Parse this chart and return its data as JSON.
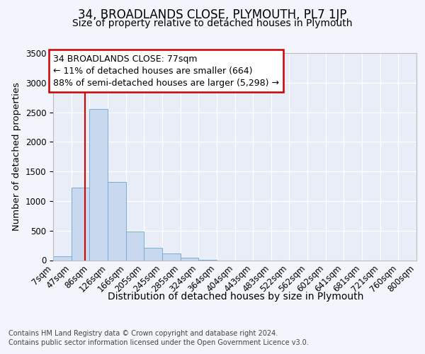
{
  "title": "34, BROADLANDS CLOSE, PLYMOUTH, PL7 1JP",
  "subtitle": "Size of property relative to detached houses in Plymouth",
  "xlabel": "Distribution of detached houses by size in Plymouth",
  "ylabel": "Number of detached properties",
  "bin_edges": [
    7,
    47,
    86,
    126,
    166,
    205,
    245,
    285,
    324,
    364,
    404,
    443,
    483,
    522,
    562,
    602,
    641,
    681,
    721,
    760,
    800
  ],
  "bar_heights": [
    60,
    1230,
    2550,
    1320,
    490,
    210,
    110,
    40,
    5,
    0,
    0,
    0,
    0,
    0,
    0,
    0,
    0,
    0,
    0,
    0
  ],
  "bar_color": "#c8d8ee",
  "bar_edge_color": "#7aadd4",
  "red_line_x": 77,
  "annotation_line1": "34 BROADLANDS CLOSE: 77sqm",
  "annotation_line2": "← 11% of detached houses are smaller (664)",
  "annotation_line3": "88% of semi-detached houses are larger (5,298) →",
  "annotation_border_color": "#cc0000",
  "ylim": [
    0,
    3500
  ],
  "yticks": [
    0,
    500,
    1000,
    1500,
    2000,
    2500,
    3000,
    3500
  ],
  "footer_line1": "Contains HM Land Registry data © Crown copyright and database right 2024.",
  "footer_line2": "Contains public sector information licensed under the Open Government Licence v3.0.",
  "background_color": "#f2f5fb",
  "plot_bg_color": "#e8edf8",
  "grid_color": "#ffffff",
  "title_fontsize": 12,
  "subtitle_fontsize": 10,
  "tick_label_fontsize": 8.5,
  "ylabel_fontsize": 9.5,
  "xlabel_fontsize": 10,
  "footer_fontsize": 7,
  "red_line_color": "#dd0000",
  "annotation_fontsize": 9
}
